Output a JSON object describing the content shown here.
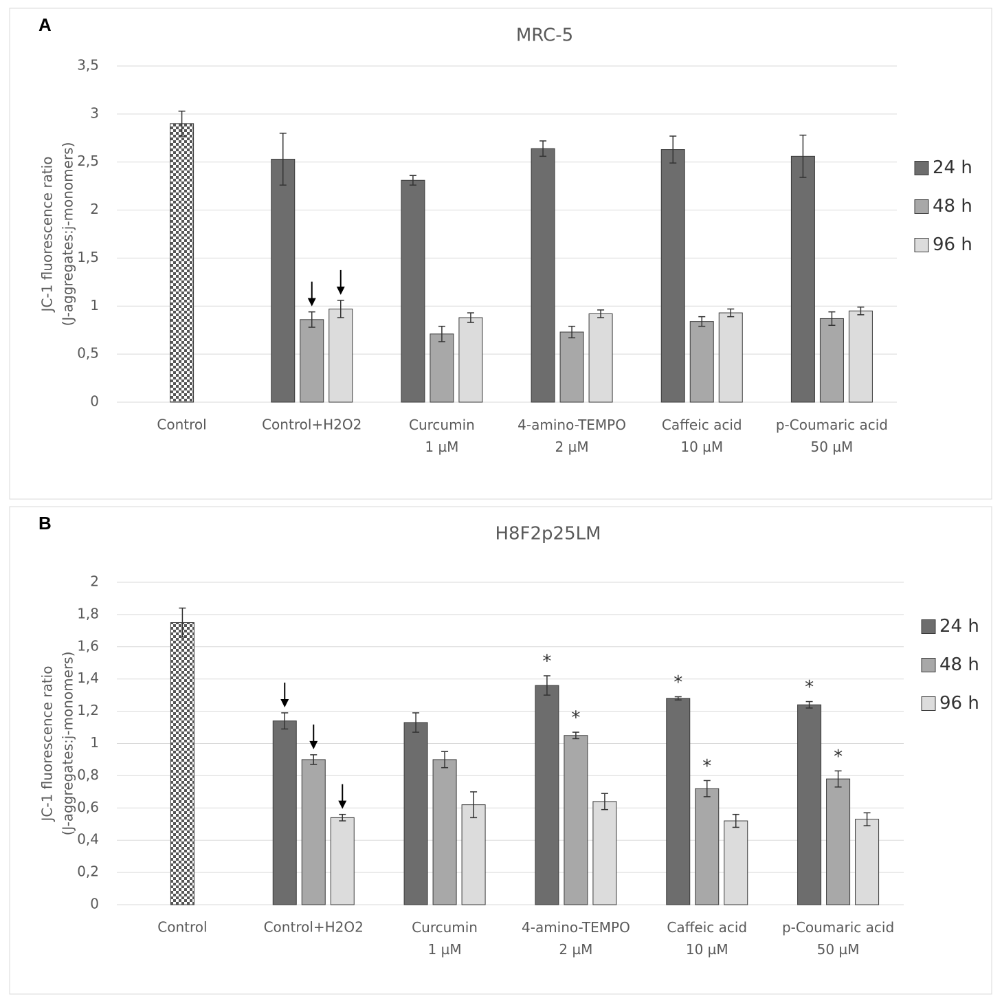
{
  "chart_data": [
    {
      "type": "bar",
      "panel": "A",
      "title": "MRC-5",
      "ylabel": [
        "JC-1 fluorescence ratio",
        "(J-aggregates:j-monomers)"
      ],
      "categories": [
        "Control",
        "Control+H2O2",
        "Curcumin\n1 µM",
        "4-amino-TEMPO\n2 µM",
        "Caffeic acid\n10 µM",
        "p-Coumaric acid\n50 µM"
      ],
      "series": [
        {
          "name": "24 h",
          "color": "#6d6d6d",
          "values": [
            2.9,
            2.53,
            2.31,
            2.64,
            2.63,
            2.56
          ],
          "errors": [
            0.13,
            0.27,
            0.05,
            0.08,
            0.14,
            0.22
          ]
        },
        {
          "name": "48 h",
          "color": "#a8a8a8",
          "values": [
            null,
            0.86,
            0.71,
            0.73,
            0.84,
            0.87
          ],
          "errors": [
            null,
            0.08,
            0.08,
            0.06,
            0.05,
            0.07
          ]
        },
        {
          "name": "96 h",
          "color": "#dcdcdc",
          "values": [
            null,
            0.97,
            0.88,
            0.92,
            0.93,
            0.95
          ],
          "errors": [
            null,
            0.09,
            0.05,
            0.04,
            0.04,
            0.04
          ]
        }
      ],
      "pattern_first_category": "checker",
      "ylim": [
        0,
        3.5
      ],
      "yticks": [
        0,
        {
          "value": 0.5,
          "label": "0,5"
        },
        1,
        {
          "value": 1.5,
          "label": "1,5"
        },
        2,
        {
          "value": 2.5,
          "label": "2,5"
        },
        3,
        {
          "value": 3.5,
          "label": "3,5"
        }
      ],
      "grid": true,
      "legend": "right",
      "markers": [
        {
          "series": 1,
          "index": 1,
          "symbol": "arrow"
        },
        {
          "series": 2,
          "index": 1,
          "symbol": "arrow"
        }
      ]
    },
    {
      "type": "bar",
      "panel": "B",
      "title": "H8F2p25LM",
      "ylabel": [
        "JC-1 fluorescence ratio",
        "(J-aggregates:j-monomers)"
      ],
      "categories": [
        "Control",
        "Control+H2O2",
        "Curcumin\n1 µM",
        "4-amino-TEMPO\n2 µM",
        "Caffeic acid\n10 µM",
        "p-Coumaric acid\n50 µM"
      ],
      "series": [
        {
          "name": "24 h",
          "color": "#6d6d6d",
          "values": [
            1.75,
            1.14,
            1.13,
            1.36,
            1.28,
            1.24
          ],
          "errors": [
            0.09,
            0.05,
            0.06,
            0.06,
            0.01,
            0.02
          ]
        },
        {
          "name": "48 h",
          "color": "#a8a8a8",
          "values": [
            null,
            0.9,
            0.9,
            1.05,
            0.72,
            0.78
          ],
          "errors": [
            null,
            0.03,
            0.05,
            0.02,
            0.05,
            0.05
          ]
        },
        {
          "name": "96 h",
          "color": "#dcdcdc",
          "values": [
            null,
            0.54,
            0.62,
            0.64,
            0.52,
            0.53
          ],
          "errors": [
            null,
            0.02,
            0.08,
            0.05,
            0.04,
            0.04
          ]
        }
      ],
      "pattern_first_category": "checker",
      "ylim": [
        0,
        2
      ],
      "yticks": [
        0,
        {
          "value": 0.2,
          "label": "0,2"
        },
        {
          "value": 0.4,
          "label": "0,4"
        },
        {
          "value": 0.6,
          "label": "0,6"
        },
        {
          "value": 0.8,
          "label": "0,8"
        },
        1,
        {
          "value": 1.2,
          "label": "1,2"
        },
        {
          "value": 1.4,
          "label": "1,4"
        },
        {
          "value": 1.6,
          "label": "1,6"
        },
        {
          "value": 1.8,
          "label": "1,8"
        },
        2
      ],
      "grid": true,
      "legend": "right",
      "markers": [
        {
          "series": 0,
          "index": 1,
          "symbol": "arrow"
        },
        {
          "series": 1,
          "index": 1,
          "symbol": "arrow"
        },
        {
          "series": 2,
          "index": 1,
          "symbol": "arrow"
        },
        {
          "series": 0,
          "index": 3,
          "label": "*"
        },
        {
          "series": 1,
          "index": 3,
          "label": "*"
        },
        {
          "series": 0,
          "index": 4,
          "label": "*"
        },
        {
          "series": 1,
          "index": 4,
          "label": "*"
        },
        {
          "series": 0,
          "index": 5,
          "label": "*"
        },
        {
          "series": 1,
          "index": 5,
          "label": "*"
        }
      ]
    }
  ]
}
